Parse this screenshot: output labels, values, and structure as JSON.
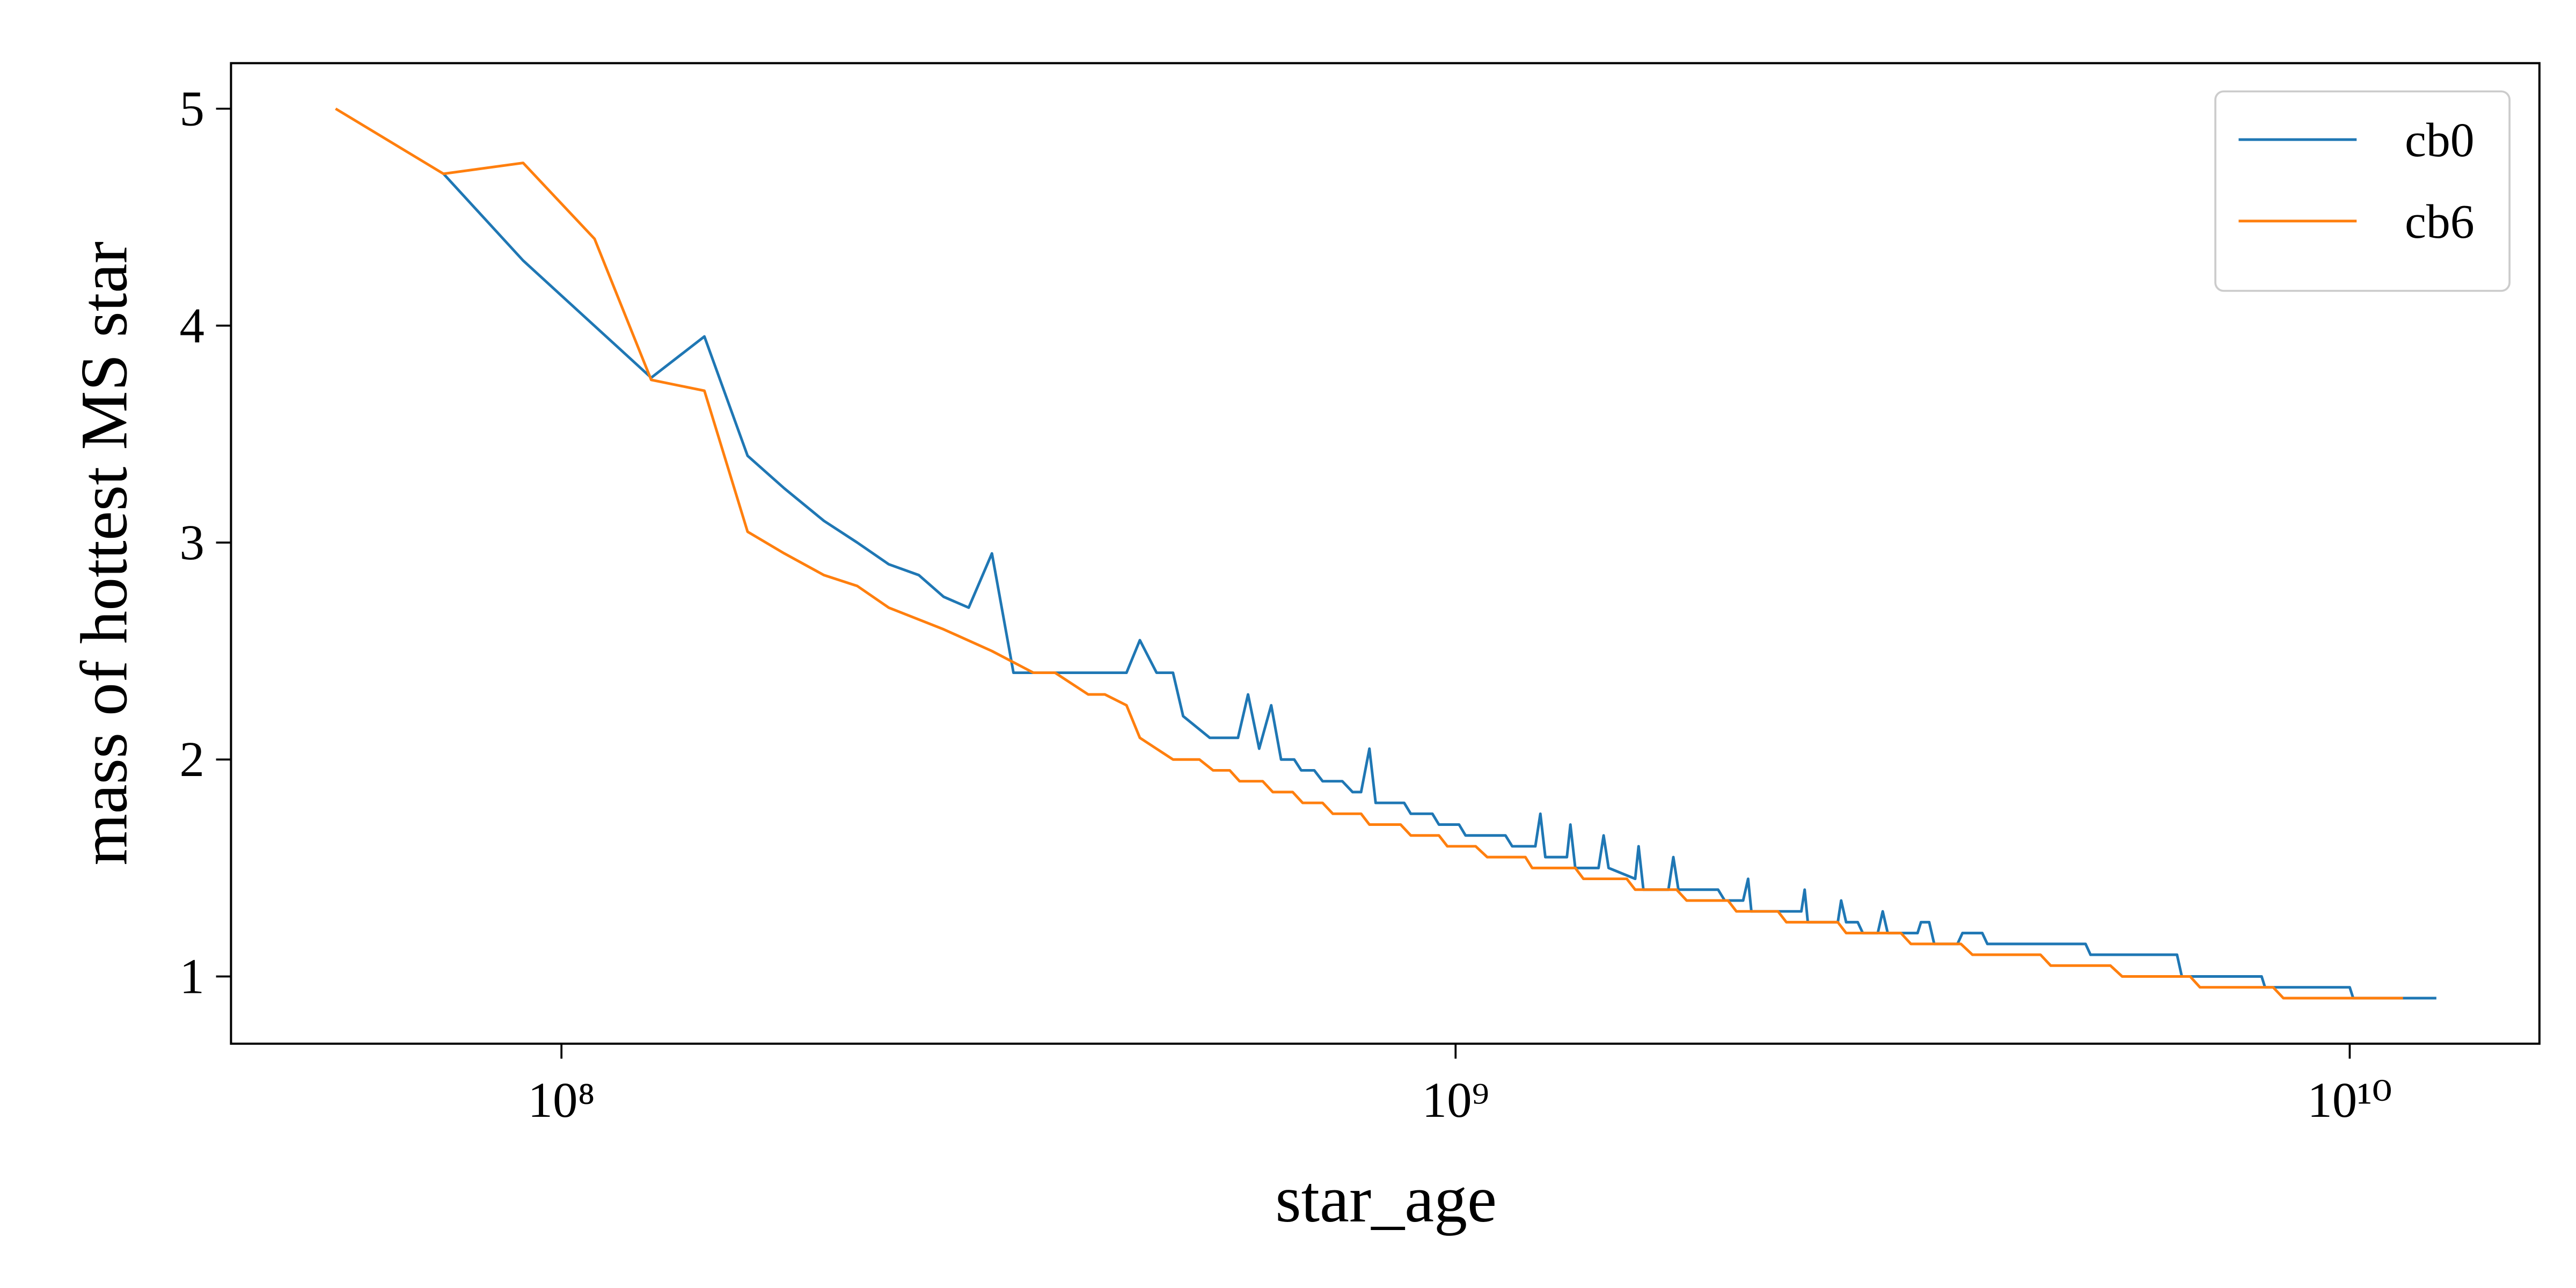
{
  "chart_data": {
    "type": "line",
    "xlabel": "star_age",
    "ylabel": "mass of hottest MS star",
    "xscale": "log",
    "xlim": [
      42700000,
      16300000000
    ],
    "ylim": [
      0.69,
      5.21
    ],
    "xticks": [
      {
        "value": 100000000,
        "label": "10⁸"
      },
      {
        "value": 1000000000,
        "label": "10⁹"
      },
      {
        "value": 10000000000,
        "label": "10¹⁰"
      }
    ],
    "yticks": [
      1,
      2,
      3,
      4,
      5
    ],
    "grid": false,
    "legend": "upper right",
    "series": [
      {
        "name": "cb0",
        "color": "#1f77b4",
        "x": [
          73800000.0,
          90600000.0,
          126000000.0,
          144500000.0,
          161500000.0,
          177500000.0,
          196600000.0,
          214200000.0,
          232300000.0,
          251000000.0,
          267600000.0,
          285400000.0,
          303000000.0,
          320300000.0,
          428500000.0,
          443500000.0,
          463000000.0,
          483000000.0,
          495800000.0,
          531000000.0,
          571000000.0,
          586000000.0,
          603000000.0,
          622000000.0,
          638000000.0,
          660000000.0,
          672000000.0,
          695000000.0,
          710000000.0,
          747000000.0,
          767000000.0,
          784000000.0,
          801000000.0,
          814000000.0,
          876000000.0,
          891000000.0,
          942000000.0,
          958000000.0,
          1009000000.0,
          1026000000.0,
          1137000000.0,
          1157000000.0,
          1228000000.0,
          1244000000.0,
          1260000000.0,
          1332000000.0,
          1344000000.0,
          1361000000.0,
          1445000000.0,
          1464000000.0,
          1483000000.0,
          1588000000.0,
          1602000000.0,
          1622000000.0,
          1730000000.0,
          1752000000.0,
          1775000000.0,
          1966000000.0,
          2000000000.0,
          2097000000.0,
          2124000000.0,
          2142000000.0,
          2436000000.0,
          2457000000.0,
          2477000000.0,
          2676000000.0,
          2699000000.0,
          2734000000.0,
          2817000000.0,
          2854000000.0,
          2966000000.0,
          3004000000.0,
          3043000000.0,
          3286000000.0,
          3315000000.0,
          3386000000.0,
          3430000000.0,
          3642000000.0,
          3689000000.0,
          3882000000.0,
          3933000000.0,
          5065000000.0,
          5130000000.0,
          6410000000.0,
          6490000000.0,
          7970000000.0,
          8040000000.0,
          10000000000.0,
          10090000000.0,
          12500000000.0
        ],
        "values": [
          4.7,
          4.3,
          3.76,
          3.95,
          3.4,
          3.25,
          3.1,
          3.0,
          2.9,
          2.85,
          2.75,
          2.7,
          2.95,
          2.4,
          2.4,
          2.55,
          2.4,
          2.4,
          2.2,
          2.1,
          2.1,
          2.3,
          2.05,
          2.25,
          2.0,
          2.0,
          1.95,
          1.95,
          1.9,
          1.9,
          1.85,
          1.85,
          2.05,
          1.8,
          1.8,
          1.75,
          1.75,
          1.7,
          1.7,
          1.65,
          1.65,
          1.6,
          1.6,
          1.75,
          1.55,
          1.55,
          1.7,
          1.5,
          1.5,
          1.65,
          1.5,
          1.45,
          1.6,
          1.4,
          1.4,
          1.55,
          1.4,
          1.4,
          1.35,
          1.35,
          1.45,
          1.3,
          1.3,
          1.4,
          1.25,
          1.25,
          1.35,
          1.25,
          1.25,
          1.2,
          1.2,
          1.3,
          1.2,
          1.2,
          1.25,
          1.25,
          1.15,
          1.15,
          1.2,
          1.2,
          1.15,
          1.15,
          1.1,
          1.1,
          1.0,
          1.0,
          0.95,
          0.95,
          0.9,
          0.9
        ]
      },
      {
        "name": "cb6",
        "color": "#ff7f0e",
        "x": [
          55900000.0,
          73800000.0,
          90600000.0,
          108900000.0,
          126000000.0,
          144500000.0,
          161500000.0,
          177500000.0,
          196600000.0,
          214200000.0,
          232300000.0,
          267600000.0,
          303000000.0,
          337200000.0,
          356500000.0,
          388200000.0,
          405300000.0,
          428500000.0,
          443500000.0,
          483000000.0,
          517000000.0,
          535500000.0,
          559000000.0,
          573300000.0,
          608500000.0,
          624500000.0,
          657300000.0,
          674500000.0,
          710000000.0,
          729000000.0,
          784000000.0,
          801000000.0,
          868000000.0,
          891000000.0,
          958000000.0,
          979000000.0,
          1053000000.0,
          1085000000.0,
          1197000000.0,
          1218000000.0,
          1361000000.0,
          1390000000.0,
          1554000000.0,
          1588000000.0,
          1767000000.0,
          1813000000.0,
          2017000000.0,
          2061000000.0,
          2294000000.0,
          2344000000.0,
          2676000000.0,
          2734000000.0,
          3148000000.0,
          3230000000.0,
          3674000000.0,
          3785000000.0,
          4510000000.0,
          4630000000.0,
          5400000000.0,
          5565000000.0,
          6630000000.0,
          6800000000.0,
          8210000000.0,
          8430000000.0,
          11470000000.0
        ],
        "values": [
          5.0,
          4.7,
          4.75,
          4.4,
          3.75,
          3.7,
          3.05,
          2.95,
          2.85,
          2.8,
          2.7,
          2.6,
          2.5,
          2.4,
          2.4,
          2.3,
          2.3,
          2.25,
          2.1,
          2.0,
          2.0,
          1.95,
          1.95,
          1.9,
          1.9,
          1.85,
          1.85,
          1.8,
          1.8,
          1.75,
          1.75,
          1.7,
          1.7,
          1.65,
          1.65,
          1.6,
          1.6,
          1.55,
          1.55,
          1.5,
          1.5,
          1.45,
          1.45,
          1.4,
          1.4,
          1.35,
          1.35,
          1.3,
          1.3,
          1.25,
          1.25,
          1.2,
          1.2,
          1.15,
          1.15,
          1.1,
          1.1,
          1.05,
          1.05,
          1.0,
          1.0,
          0.95,
          0.95,
          0.9,
          0.9
        ]
      }
    ]
  }
}
